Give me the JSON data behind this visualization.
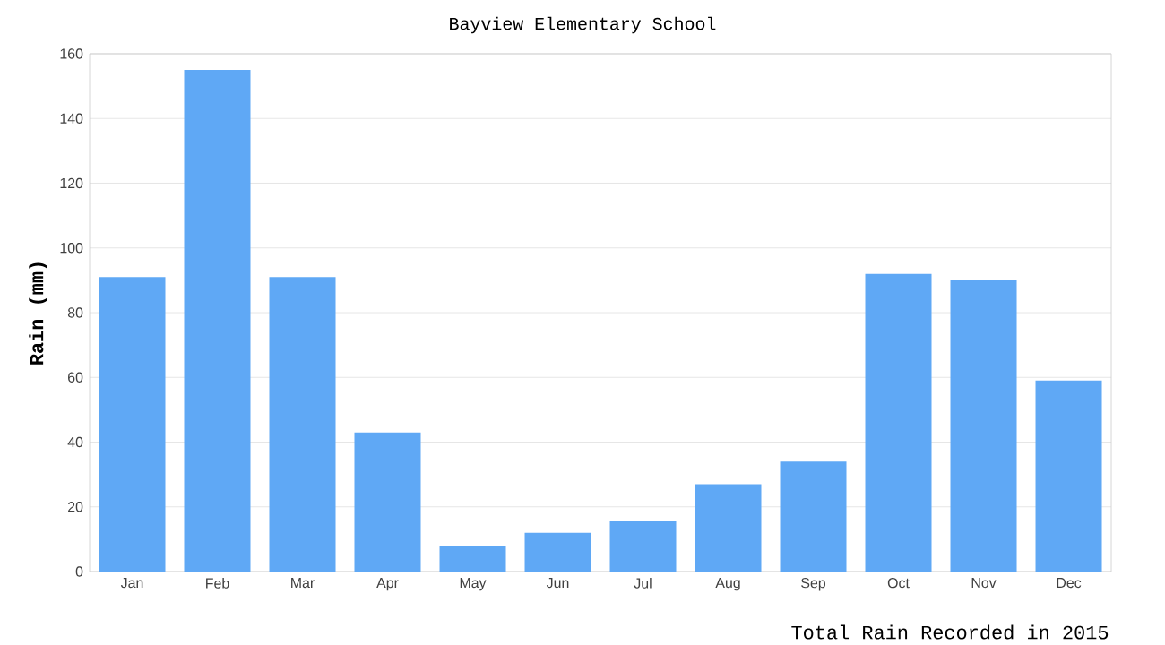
{
  "chart_data": {
    "type": "bar",
    "title": "Bayview Elementary School",
    "ylabel": "Rain (mm)",
    "annotations": [
      "Total Rain Recorded in 2015"
    ],
    "categories": [
      "Jan",
      "Feb",
      "Mar",
      "Apr",
      "May",
      "Jun",
      "Jul",
      "Aug",
      "Sep",
      "Oct",
      "Nov",
      "Dec"
    ],
    "values": [
      91,
      155,
      91,
      43,
      8,
      12,
      15.5,
      27,
      34,
      92,
      90,
      59
    ],
    "color": "#5fa8f5",
    "ylim": [
      0,
      160
    ],
    "yticks": [
      0,
      20,
      40,
      60,
      80,
      100,
      120,
      140,
      160
    ],
    "grid": "y"
  }
}
